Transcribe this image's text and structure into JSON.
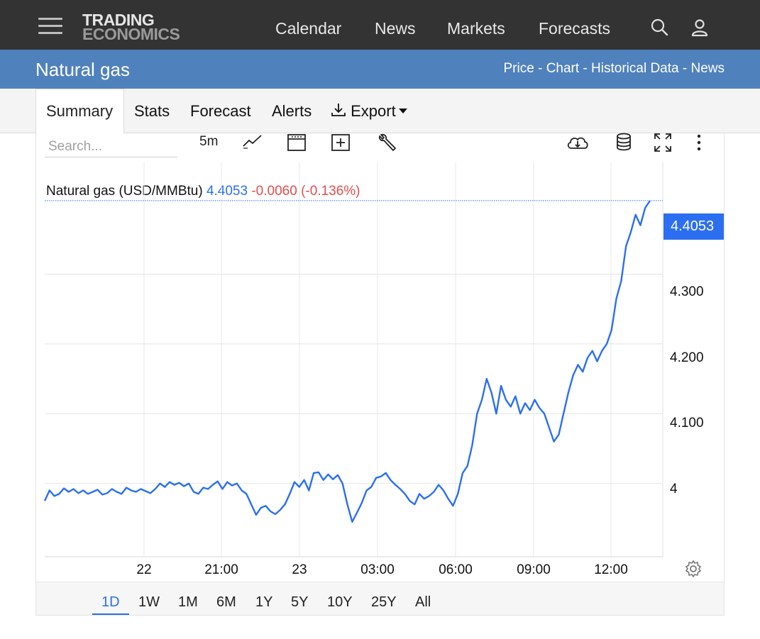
{
  "brand": {
    "line1": "TRADING",
    "line2": "ECONOMICS"
  },
  "nav": {
    "items": [
      "Calendar",
      "News",
      "Markets",
      "Forecasts"
    ]
  },
  "header": {
    "title": "Natural gas",
    "crumbs": [
      "Price",
      "Chart",
      "Historical Data",
      "News"
    ],
    "separator": " - "
  },
  "tabs": {
    "items": [
      "Summary",
      "Stats",
      "Forecast",
      "Alerts",
      "Export"
    ],
    "active": "Summary"
  },
  "toolbar": {
    "search_placeholder": "Search...",
    "interval": "5m"
  },
  "legend": {
    "name": "Natural gas (USD/MMBtu)",
    "value": "4.4053",
    "change": "-0.0060 (-0.136%)"
  },
  "ranges": {
    "items": [
      "1D",
      "1W",
      "1M",
      "6M",
      "1Y",
      "5Y",
      "10Y",
      "25Y",
      "All"
    ],
    "active": "1D"
  },
  "colors": {
    "accent": "#2b6ff0",
    "negative": "#e34d4d",
    "nav_bg": "#333333",
    "title_bar": "#4f81bd"
  },
  "chart_data": {
    "type": "line",
    "ylim": [
      3.895,
      4.46
    ],
    "yticks": [
      "4",
      "4.100",
      "4.200",
      "4.300"
    ],
    "ytick_values": [
      4.0,
      4.1,
      4.2,
      4.3
    ],
    "current_value_label": "4.4053",
    "current_value": 4.4053,
    "xticks": [
      "22",
      "21:00",
      "23",
      "03:00",
      "06:00",
      "09:00",
      "12:00"
    ],
    "grid": true,
    "series": [
      {
        "values": [
          3.975,
          3.99,
          3.982,
          3.985,
          3.993,
          3.988,
          3.992,
          3.986,
          3.99,
          3.985,
          3.988,
          3.991,
          3.984,
          3.986,
          3.992,
          3.988,
          3.985,
          3.994,
          3.99,
          3.988,
          3.992,
          3.989,
          3.986,
          3.992,
          4.0,
          3.995,
          4.002,
          3.998,
          4.001,
          3.996,
          4.0,
          3.988,
          3.985,
          3.994,
          3.992,
          3.998,
          4.003,
          3.992,
          4.002,
          3.997,
          4.0,
          3.99,
          3.985,
          3.97,
          3.955,
          3.965,
          3.968,
          3.96,
          3.956,
          3.962,
          3.97,
          3.985,
          4.002,
          3.995,
          4.005,
          3.99,
          4.015,
          4.016,
          4.005,
          4.013,
          4.006,
          4.012,
          4.0,
          3.97,
          3.945,
          3.958,
          3.972,
          3.99,
          3.995,
          4.008,
          4.01,
          4.015,
          4.005,
          3.998,
          3.992,
          3.985,
          3.975,
          3.97,
          3.985,
          3.978,
          3.982,
          3.988,
          3.998,
          3.99,
          3.978,
          3.968,
          3.985,
          4.015,
          4.025,
          4.055,
          4.1,
          4.12,
          4.15,
          4.13,
          4.1,
          4.14,
          4.12,
          4.11,
          4.125,
          4.1,
          4.115,
          4.105,
          4.12,
          4.108,
          4.1,
          4.08,
          4.06,
          4.07,
          4.1,
          4.13,
          4.155,
          4.17,
          4.16,
          4.18,
          4.19,
          4.175,
          4.19,
          4.2,
          4.22,
          4.265,
          4.29,
          4.34,
          4.36,
          4.385,
          4.37,
          4.395,
          4.405
        ]
      }
    ]
  }
}
